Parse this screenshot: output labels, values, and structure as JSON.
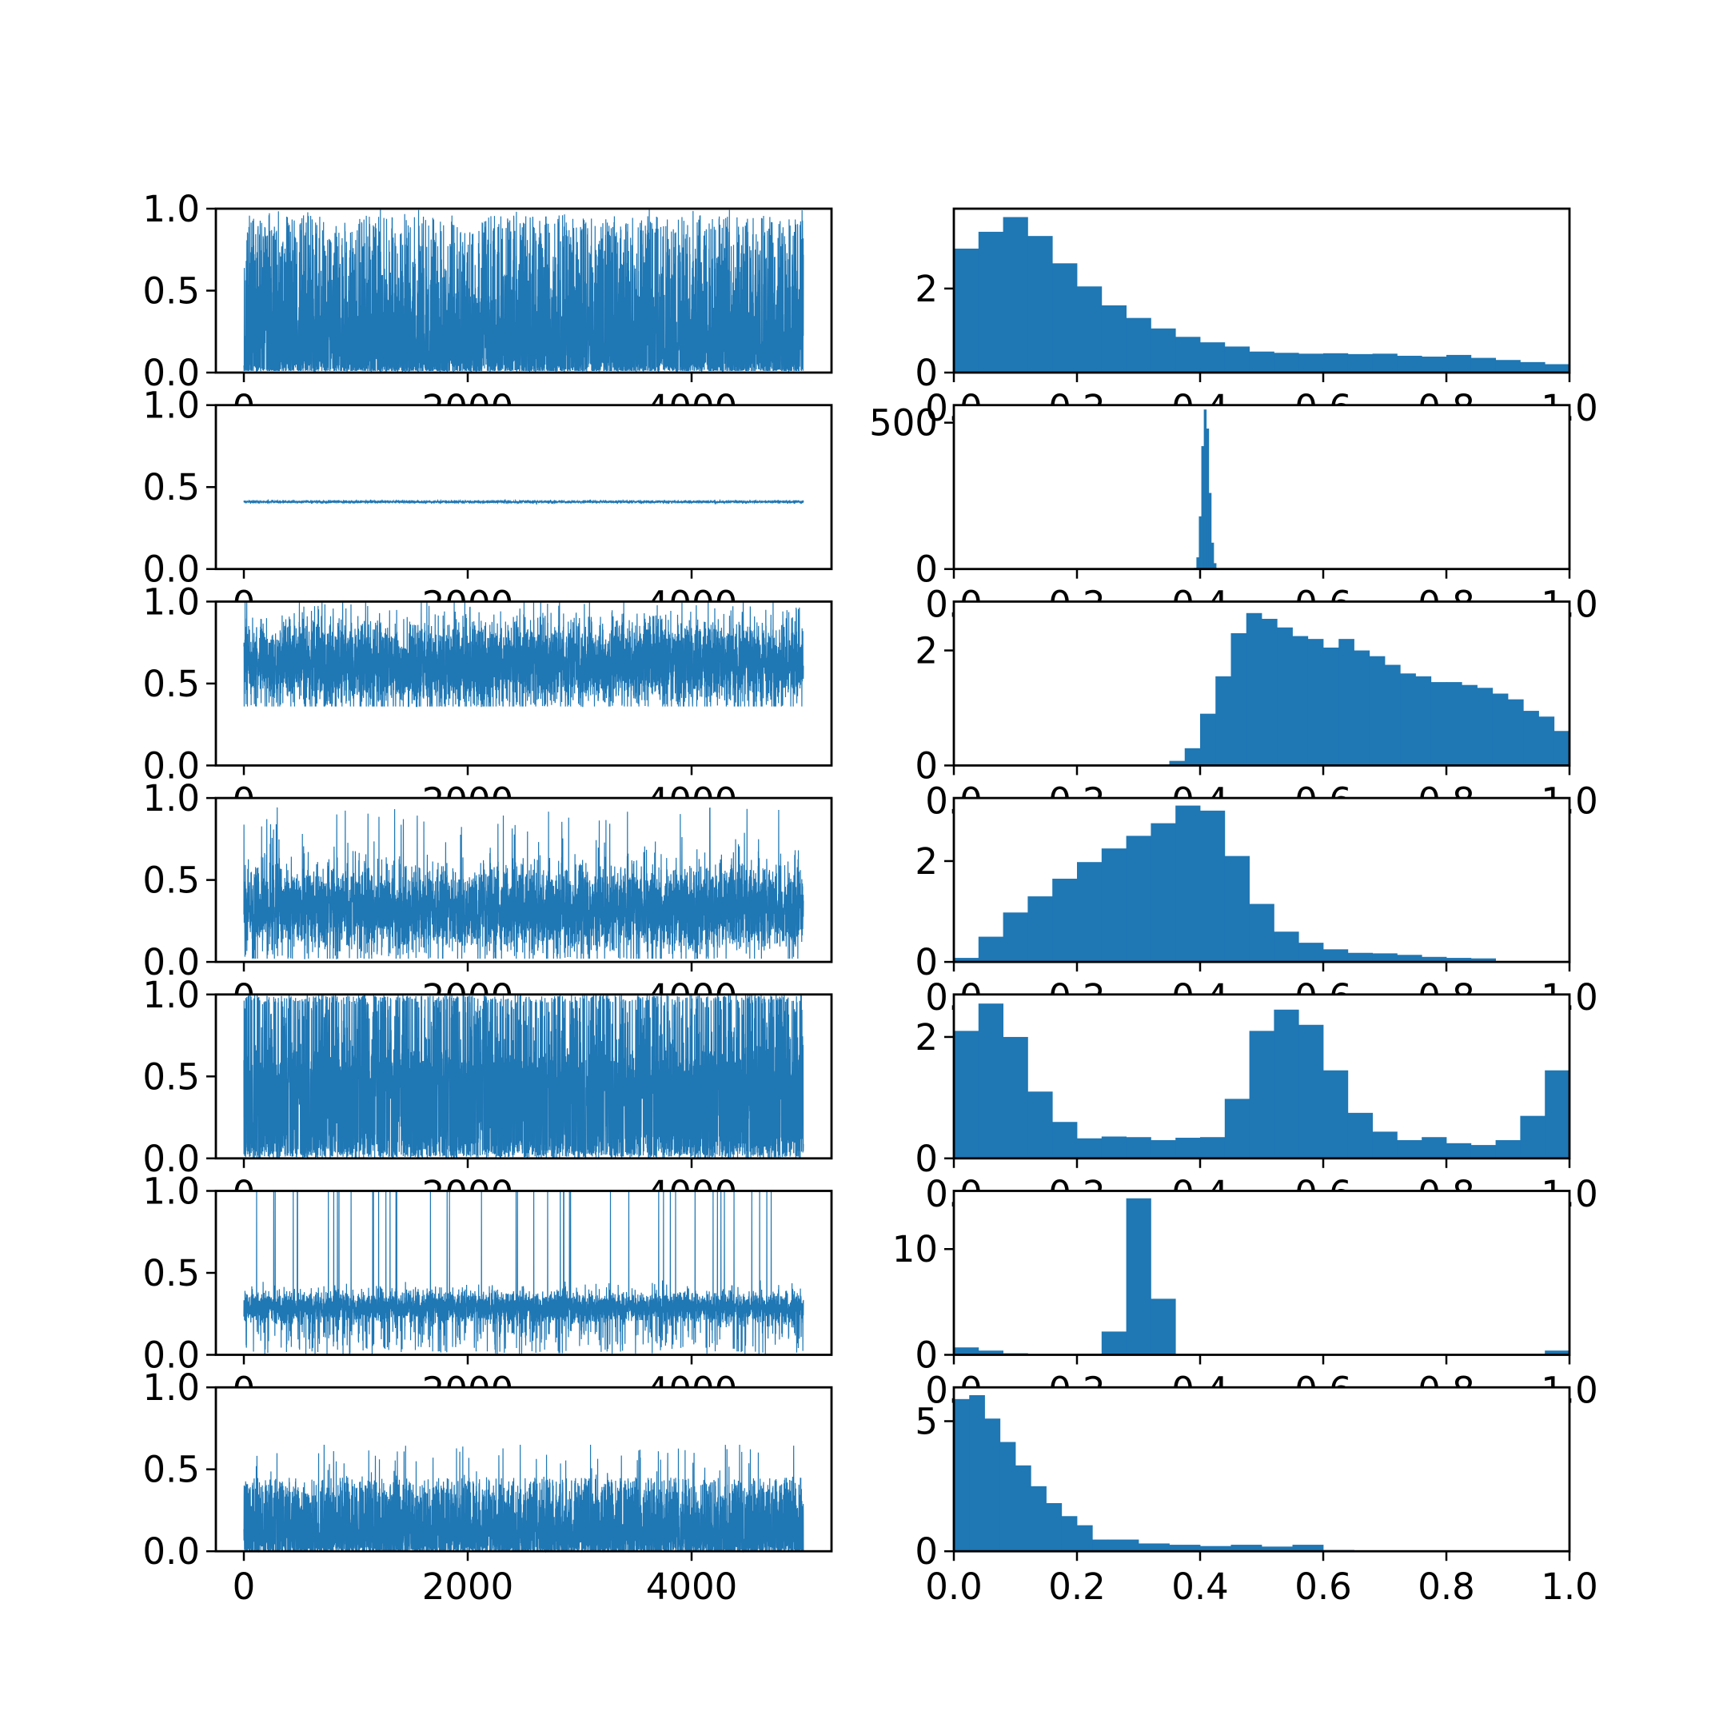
{
  "chart_data": {
    "type": "panel-grid",
    "layout": {
      "rows": 7,
      "columns": 2,
      "left": "trace",
      "right": "histogram"
    },
    "color": "#1f77b4",
    "trace": {
      "type": "line",
      "n_samples": 5000,
      "xlim": [
        -250,
        5250
      ],
      "ylim": [
        0,
        1
      ],
      "xticks": [
        0,
        2000,
        4000
      ],
      "xtick_labels": [
        "0",
        "2000",
        "4000"
      ],
      "yticks": [
        0,
        0.5,
        1
      ],
      "ytick_labels": [
        "0.0",
        "0.5",
        "1.0"
      ]
    },
    "hist": {
      "type": "bar",
      "xlim": [
        0,
        1
      ],
      "xticks": [
        0,
        0.2,
        0.4,
        0.6,
        0.8,
        1.0
      ],
      "xtick_labels": [
        "0.0",
        "0.2",
        "0.4",
        "0.6",
        "0.8",
        "1.0"
      ]
    },
    "panels": [
      {
        "name": "",
        "trace_model": {
          "kind": "skewed",
          "center": 0.18,
          "spread": 0.2,
          "min": 0.0,
          "max": 1.0,
          "spikes": 0.0
        },
        "hist": {
          "ylim": [
            0,
            3.9
          ],
          "yticks": [
            0,
            2
          ],
          "ytick_labels": [
            "0",
            "2"
          ],
          "bin_edges": [
            0,
            0.04,
            0.08,
            0.12,
            0.16,
            0.2,
            0.24,
            0.28,
            0.32,
            0.36,
            0.4,
            0.44,
            0.48,
            0.52,
            0.56,
            0.6,
            0.64,
            0.68,
            0.72,
            0.76,
            0.8,
            0.84,
            0.88,
            0.92,
            0.96,
            1.0
          ],
          "values": [
            2.95,
            3.35,
            3.7,
            3.25,
            2.6,
            2.05,
            1.6,
            1.3,
            1.05,
            0.85,
            0.72,
            0.62,
            0.5,
            0.47,
            0.45,
            0.46,
            0.44,
            0.45,
            0.4,
            0.38,
            0.42,
            0.35,
            0.3,
            0.25,
            0.2
          ]
        }
      },
      {
        "name": "",
        "trace_model": {
          "kind": "narrow",
          "center": 0.41,
          "spread": 0.012,
          "min": 0.39,
          "max": 0.43,
          "spikes": 0.0
        },
        "hist": {
          "ylim": [
            0,
            560
          ],
          "yticks": [
            0,
            500
          ],
          "ytick_labels": [
            "0",
            "500"
          ],
          "bin_edges": [
            0.39,
            0.394,
            0.398,
            0.402,
            0.406,
            0.41,
            0.414,
            0.418,
            0.422,
            0.426,
            0.43
          ],
          "values": [
            4,
            40,
            180,
            420,
            545,
            480,
            260,
            90,
            20,
            3
          ]
        }
      },
      {
        "name": "",
        "trace_model": {
          "kind": "upper",
          "center": 0.62,
          "spread": 0.14,
          "min": 0.36,
          "max": 1.0,
          "spikes": 0.0
        },
        "hist": {
          "ylim": [
            0,
            2.85
          ],
          "yticks": [
            0,
            2
          ],
          "ytick_labels": [
            "0",
            "2"
          ],
          "bin_edges": [
            0.35,
            0.375,
            0.4,
            0.425,
            0.45,
            0.475,
            0.5,
            0.525,
            0.55,
            0.575,
            0.6,
            0.625,
            0.65,
            0.675,
            0.7,
            0.725,
            0.75,
            0.775,
            0.8,
            0.825,
            0.85,
            0.875,
            0.9,
            0.925,
            0.95,
            0.975,
            1.0
          ],
          "values": [
            0.08,
            0.3,
            0.9,
            1.55,
            2.3,
            2.65,
            2.55,
            2.4,
            2.25,
            2.2,
            2.05,
            2.2,
            2.0,
            1.9,
            1.75,
            1.6,
            1.55,
            1.45,
            1.45,
            1.4,
            1.35,
            1.25,
            1.15,
            0.95,
            0.85,
            0.6
          ]
        }
      },
      {
        "name": "",
        "trace_model": {
          "kind": "mid",
          "center": 0.32,
          "spread": 0.14,
          "min": 0.02,
          "max": 0.98,
          "spikes": 0.0
        },
        "hist": {
          "ylim": [
            0,
            3.25
          ],
          "yticks": [
            0,
            2
          ],
          "ytick_labels": [
            "0",
            "2"
          ],
          "bin_edges": [
            0,
            0.04,
            0.08,
            0.12,
            0.16,
            0.2,
            0.24,
            0.28,
            0.32,
            0.36,
            0.4,
            0.44,
            0.48,
            0.52,
            0.56,
            0.6,
            0.64,
            0.68,
            0.72,
            0.76,
            0.8,
            0.84,
            0.88
          ],
          "values": [
            0.08,
            0.5,
            0.98,
            1.3,
            1.65,
            1.98,
            2.25,
            2.5,
            2.75,
            3.1,
            3.0,
            2.1,
            1.15,
            0.6,
            0.38,
            0.25,
            0.18,
            0.17,
            0.14,
            0.1,
            0.08,
            0.07
          ]
        }
      },
      {
        "name": "",
        "trace_model": {
          "kind": "multi",
          "center": 0.5,
          "spread": 0.3,
          "min": 0.0,
          "max": 1.0,
          "spikes": 0.0
        },
        "hist": {
          "ylim": [
            0,
            2.7
          ],
          "yticks": [
            0,
            2
          ],
          "ytick_labels": [
            "0",
            "2"
          ],
          "bin_edges": [
            0,
            0.04,
            0.08,
            0.12,
            0.16,
            0.2,
            0.24,
            0.28,
            0.32,
            0.36,
            0.4,
            0.44,
            0.48,
            0.52,
            0.56,
            0.6,
            0.64,
            0.68,
            0.72,
            0.76,
            0.8,
            0.84,
            0.88,
            0.92,
            0.96,
            1.0
          ],
          "values": [
            2.1,
            2.55,
            2.0,
            1.1,
            0.6,
            0.33,
            0.36,
            0.35,
            0.3,
            0.34,
            0.35,
            0.98,
            2.1,
            2.45,
            2.2,
            1.45,
            0.75,
            0.44,
            0.3,
            0.35,
            0.25,
            0.22,
            0.3,
            0.7,
            1.45
          ]
        }
      },
      {
        "name": "",
        "trace_model": {
          "kind": "spiky",
          "center": 0.29,
          "spread": 0.05,
          "min": 0.0,
          "max": 1.0,
          "spikes": 0.012
        },
        "hist": {
          "ylim": [
            0,
            15.5
          ],
          "yticks": [
            0,
            10
          ],
          "ytick_labels": [
            "0",
            "10"
          ],
          "bin_edges": [
            0,
            0.04,
            0.08,
            0.12,
            0.16,
            0.2,
            0.24,
            0.28,
            0.32,
            0.36,
            0.4,
            0.44,
            0.48,
            0.52,
            0.56,
            0.6,
            0.64,
            0.68,
            0.72,
            0.76,
            0.8,
            0.84,
            0.88,
            0.92,
            0.96,
            1.0
          ],
          "values": [
            0.7,
            0.4,
            0.15,
            0.05,
            0.02,
            0.1,
            2.2,
            14.8,
            5.3,
            0.05,
            0.0,
            0.0,
            0.0,
            0.0,
            0.0,
            0.0,
            0.0,
            0.0,
            0.0,
            0.0,
            0.0,
            0.0,
            0.0,
            0.0,
            0.4
          ]
        }
      },
      {
        "name": "",
        "trace_model": {
          "kind": "skewed-low",
          "center": 0.1,
          "spread": 0.12,
          "min": 0.0,
          "max": 0.7,
          "spikes": 0.0
        },
        "hist": {
          "ylim": [
            0,
            6.3
          ],
          "yticks": [
            0,
            5
          ],
          "ytick_labels": [
            "0",
            "5"
          ],
          "bin_edges": [
            0,
            0.025,
            0.05,
            0.075,
            0.1,
            0.125,
            0.15,
            0.175,
            0.2,
            0.225,
            0.25,
            0.3,
            0.35,
            0.4,
            0.45,
            0.5,
            0.55,
            0.6,
            0.65
          ],
          "values": [
            5.85,
            6.0,
            5.1,
            4.2,
            3.3,
            2.5,
            1.85,
            1.35,
            1.0,
            0.45,
            0.45,
            0.3,
            0.25,
            0.2,
            0.25,
            0.18,
            0.25,
            0.05
          ]
        }
      }
    ]
  }
}
